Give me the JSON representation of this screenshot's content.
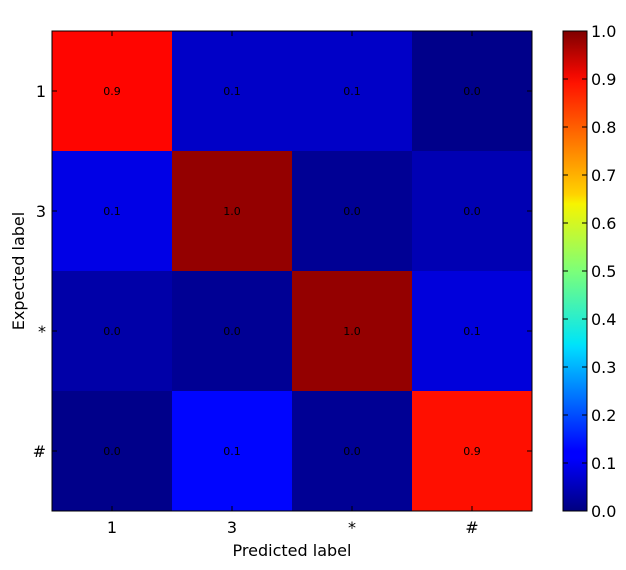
{
  "chart_data": {
    "type": "heatmap",
    "xlabel": "Predicted label",
    "ylabel": "Expected label",
    "x_categories": [
      "1",
      "3",
      "*",
      "#"
    ],
    "y_categories": [
      "1",
      "3",
      "*",
      "#"
    ],
    "values": [
      [
        0.87,
        0.07,
        0.07,
        0.01
      ],
      [
        0.1,
        0.98,
        0.02,
        0.05
      ],
      [
        0.04,
        0.02,
        0.98,
        0.09
      ],
      [
        0.01,
        0.13,
        0.02,
        0.86
      ]
    ],
    "cell_labels": [
      [
        "0.9",
        "0.1",
        "0.1",
        "0.0"
      ],
      [
        "0.1",
        "1.0",
        "0.0",
        "0.0"
      ],
      [
        "0.0",
        "0.0",
        "1.0",
        "0.1"
      ],
      [
        "0.0",
        "0.1",
        "0.0",
        "0.9"
      ]
    ],
    "colormap": "jet",
    "colorbar": {
      "min": 0.0,
      "max": 1.0,
      "ticks": [
        "0.0",
        "0.1",
        "0.2",
        "0.3",
        "0.4",
        "0.5",
        "0.6",
        "0.7",
        "0.8",
        "0.9",
        "1.0"
      ]
    }
  }
}
